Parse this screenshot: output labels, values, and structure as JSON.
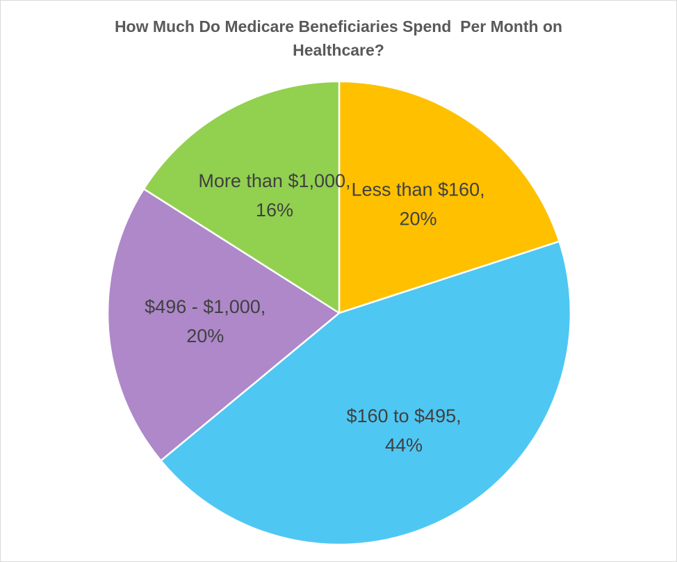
{
  "chart_data": {
    "type": "pie",
    "title": "How Much Do Medicare Beneficiaries Spend  Per Month on Healthcare?",
    "slices": [
      {
        "name": "Less than $160",
        "value": 20,
        "label": "20%",
        "color": "#FFC000"
      },
      {
        "name": "$160 to $495",
        "value": 44,
        "label": "44%",
        "color": "#4FC7F3"
      },
      {
        "name": "$496 - $1,000",
        "value": 20,
        "label": "20%",
        "color": "#AE88C9"
      },
      {
        "name": "More than $1,000",
        "value": 16,
        "label": "16%",
        "color": "#92D050"
      }
    ],
    "start_angle_deg": 0,
    "direction": "clockwise",
    "legend": "none",
    "data_labels": "inside, category name and percentage"
  }
}
